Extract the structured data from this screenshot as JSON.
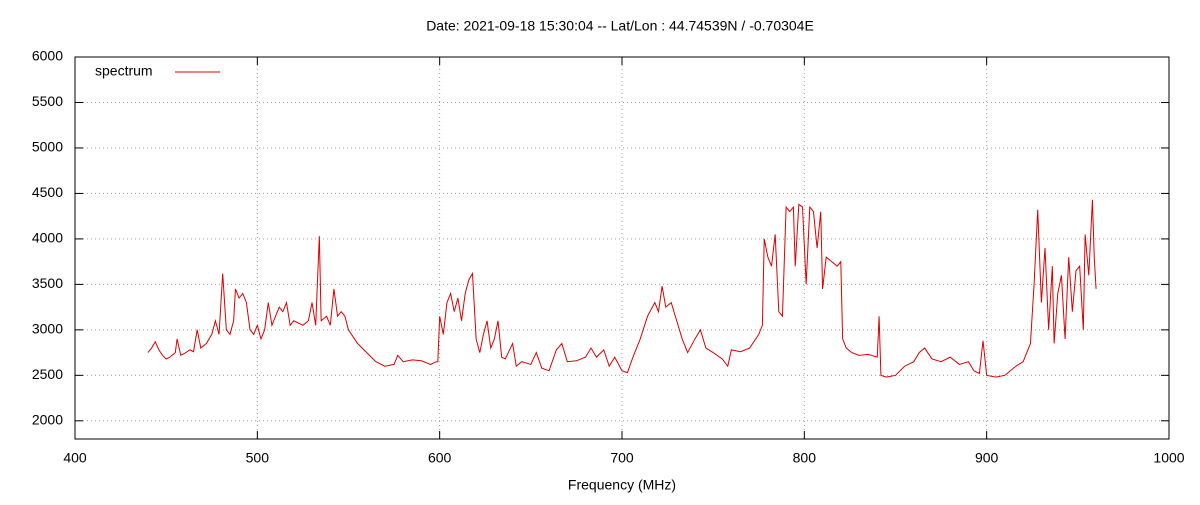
{
  "chart_data": {
    "type": "line",
    "title": "Date: 2021-09-18 15:30:04  --  Lat/Lon : 44.74539N / -0.70304E",
    "x_label": "Frequency (MHz)",
    "legend": "top-left",
    "grid": true,
    "xlim": [
      400,
      1000
    ],
    "xticks": [
      400,
      500,
      600,
      700,
      800,
      900,
      1000
    ],
    "ylim": [
      1800,
      6000
    ],
    "yticks": [
      2000,
      2500,
      3000,
      3500,
      4000,
      4500,
      5000,
      5500,
      6000
    ],
    "x": [
      440,
      442,
      444,
      446,
      448,
      450,
      452,
      455,
      456,
      458,
      460,
      463,
      465,
      467,
      469,
      472,
      475,
      477,
      479,
      481,
      483,
      485,
      487,
      488,
      490,
      492,
      494,
      496,
      498,
      500,
      502,
      504,
      506,
      508,
      510,
      512,
      514,
      516,
      518,
      520,
      525,
      528,
      530,
      532,
      534,
      535,
      538,
      540,
      542,
      544,
      546,
      548,
      550,
      555,
      560,
      565,
      570,
      575,
      577,
      580,
      585,
      590,
      595,
      598,
      599,
      600,
      602,
      604,
      606,
      608,
      610,
      612,
      614,
      616,
      618,
      620,
      622,
      624,
      626,
      628,
      630,
      632,
      634,
      636,
      640,
      642,
      645,
      650,
      653,
      656,
      660,
      664,
      667,
      670,
      675,
      680,
      683,
      686,
      690,
      693,
      696,
      700,
      703,
      706,
      710,
      714,
      718,
      720,
      722,
      724,
      727,
      730,
      733,
      736,
      740,
      743,
      746,
      750,
      755,
      758,
      760,
      765,
      770,
      775,
      777,
      778,
      780,
      782,
      784,
      786,
      788,
      790,
      792,
      794,
      795,
      797,
      799,
      801,
      803,
      805,
      807,
      809,
      810,
      812,
      815,
      818,
      820,
      821,
      823,
      826,
      830,
      835,
      840,
      841,
      842,
      845,
      850,
      855,
      860,
      863,
      866,
      870,
      875,
      880,
      885,
      890,
      893,
      896,
      898,
      900,
      905,
      910,
      913,
      916,
      920,
      924,
      926,
      928,
      930,
      932,
      934,
      936,
      937,
      939,
      941,
      943,
      945,
      947,
      949,
      951,
      953,
      954,
      956,
      958,
      959,
      960
    ],
    "series": [
      {
        "name": "spectrum",
        "color": "#dd0000",
        "values": [
          2750,
          2800,
          2870,
          2780,
          2720,
          2680,
          2700,
          2750,
          2900,
          2720,
          2740,
          2780,
          2760,
          3000,
          2800,
          2850,
          2950,
          3100,
          2950,
          3620,
          3000,
          2950,
          3100,
          3450,
          3350,
          3400,
          3300,
          3000,
          2950,
          3050,
          2900,
          3000,
          3300,
          3050,
          3150,
          3250,
          3200,
          3300,
          3050,
          3100,
          3050,
          3100,
          3300,
          3050,
          4030,
          3100,
          3150,
          3050,
          3450,
          3150,
          3200,
          3150,
          3000,
          2850,
          2750,
          2650,
          2600,
          2620,
          2720,
          2650,
          2670,
          2660,
          2620,
          2650,
          2650,
          3150,
          2950,
          3300,
          3400,
          3200,
          3350,
          3100,
          3400,
          3550,
          3620,
          2900,
          2750,
          2950,
          3100,
          2800,
          2900,
          3100,
          2700,
          2680,
          2850,
          2600,
          2650,
          2620,
          2750,
          2580,
          2550,
          2780,
          2850,
          2650,
          2660,
          2700,
          2800,
          2700,
          2780,
          2600,
          2700,
          2550,
          2530,
          2700,
          2900,
          3150,
          3300,
          3200,
          3480,
          3250,
          3300,
          3100,
          2900,
          2750,
          2900,
          3000,
          2800,
          2750,
          2680,
          2600,
          2780,
          2760,
          2800,
          2950,
          3050,
          4000,
          3800,
          3700,
          4050,
          3200,
          3150,
          4350,
          4300,
          4350,
          3700,
          4380,
          4350,
          3500,
          4350,
          4300,
          3900,
          4300,
          3450,
          3800,
          3750,
          3700,
          3750,
          2900,
          2800,
          2750,
          2720,
          2730,
          2700,
          3150,
          2500,
          2480,
          2500,
          2600,
          2650,
          2750,
          2800,
          2680,
          2650,
          2700,
          2620,
          2650,
          2550,
          2520,
          2880,
          2500,
          2480,
          2500,
          2550,
          2600,
          2650,
          2850,
          3500,
          4320,
          3300,
          3900,
          3000,
          3700,
          2850,
          3400,
          3600,
          2900,
          3800,
          3200,
          3650,
          3700,
          3000,
          4050,
          3600,
          4430,
          3800,
          3450
        ]
      }
    ]
  }
}
